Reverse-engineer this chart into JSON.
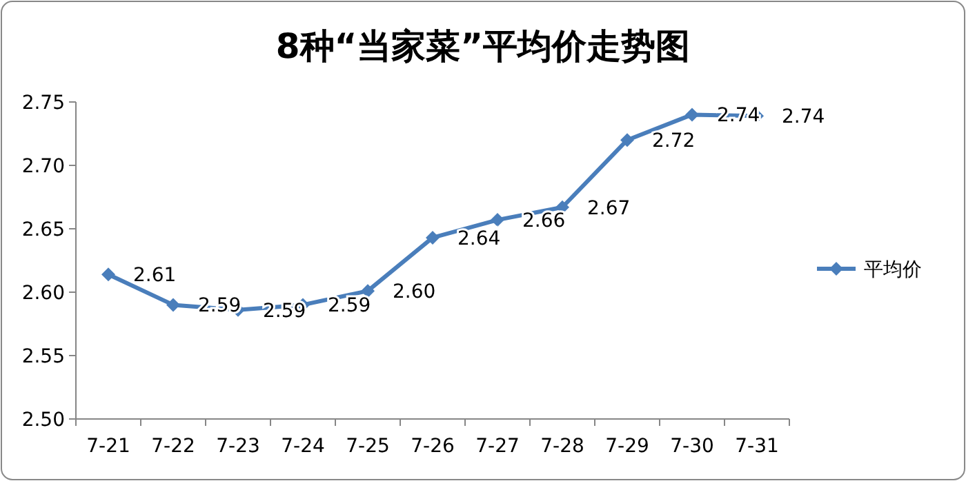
{
  "chart_data": {
    "type": "line",
    "title": "8种“当家菜”平均价走势图",
    "categories": [
      "7-21",
      "7-22",
      "7-23",
      "7-24",
      "7-25",
      "7-26",
      "7-27",
      "7-28",
      "7-29",
      "7-30",
      "7-31"
    ],
    "series": [
      {
        "name": "平均价",
        "color": "#4a7ebb",
        "values": [
          2.614,
          2.59,
          2.586,
          2.59,
          2.601,
          2.643,
          2.657,
          2.667,
          2.72,
          2.74,
          2.739
        ],
        "value_labels": [
          "2.61",
          "2.59",
          "2.59",
          "2.59",
          "2.60",
          "2.64",
          "2.66",
          "2.67",
          "2.72",
          "2.74",
          "2.74"
        ]
      }
    ],
    "ylim": [
      2.5,
      2.75
    ],
    "yticks": [
      {
        "value": 2.5,
        "label": "2.50"
      },
      {
        "value": 2.55,
        "label": "2.55"
      },
      {
        "value": 2.6,
        "label": "2.60"
      },
      {
        "value": 2.65,
        "label": "2.65"
      },
      {
        "value": 2.7,
        "label": "2.70"
      },
      {
        "value": 2.75,
        "label": "2.75"
      }
    ],
    "legend": "right",
    "marker": "diamond",
    "line_style": "solid"
  }
}
